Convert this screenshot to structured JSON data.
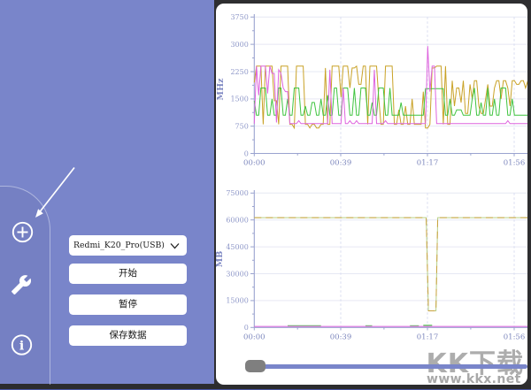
{
  "window": {
    "bg": "#2e2e30",
    "accent_line_color": "#47529f"
  },
  "sidebar": {
    "bg": "#7985ca",
    "icons": [
      {
        "name": "add"
      },
      {
        "name": "wrench"
      },
      {
        "name": "info"
      }
    ],
    "device_select": {
      "value": "Redmi_K20_Pro(USB)"
    },
    "buttons": [
      {
        "label": "开始"
      },
      {
        "label": "暂停"
      },
      {
        "label": "保存数据"
      }
    ]
  },
  "scrollbar": {
    "thumb_position": 0
  },
  "watermark": {
    "title": "KK下载",
    "url": "www.kkx.net"
  },
  "chart_style": {
    "axis_color": "#9aa3cf",
    "tick_label_color": "#9099c9",
    "x_label_color": "#7d87bd",
    "axis_title_color": "#7d87c2",
    "grid_h_color": "#e6e8f4",
    "grid_v_color": "#d9ddf0"
  },
  "chart_data": [
    {
      "type": "line",
      "ylabel": "MHz",
      "ylim": [
        0,
        3750
      ],
      "yticks": [
        0,
        750,
        1500,
        2250,
        3000,
        3750
      ],
      "xticks": [
        "00:00",
        "00:39",
        "01:17",
        "01:56"
      ],
      "grid": true,
      "legend": "none",
      "series": [
        {
          "name": "cpu-freq-gold",
          "color": "#c9a227",
          "points": [
            [
              0,
              1950
            ],
            [
              1,
              2400
            ],
            [
              3,
              2400
            ],
            [
              4,
              800
            ],
            [
              5,
              2400
            ],
            [
              8,
              2400
            ],
            [
              9,
              1450
            ],
            [
              11,
              800
            ],
            [
              12,
              2400
            ],
            [
              15,
              2400
            ],
            [
              16,
              800
            ],
            [
              18,
              700
            ],
            [
              19,
              2400
            ],
            [
              22,
              2400
            ],
            [
              23,
              800
            ],
            [
              25,
              700
            ],
            [
              26,
              800
            ],
            [
              28,
              700
            ],
            [
              30,
              800
            ],
            [
              32,
              2350
            ],
            [
              33,
              800
            ],
            [
              35,
              2400
            ],
            [
              38,
              2400
            ],
            [
              39,
              1550
            ],
            [
              40,
              2400
            ],
            [
              42,
              2400
            ],
            [
              43,
              1800
            ],
            [
              44,
              2350
            ],
            [
              46,
              2400
            ],
            [
              47,
              1900
            ],
            [
              49,
              2400
            ],
            [
              51,
              800
            ],
            [
              52,
              2400
            ],
            [
              55,
              2400
            ],
            [
              56,
              1500
            ],
            [
              57,
              800
            ],
            [
              59,
              2400
            ],
            [
              62,
              2400
            ],
            [
              63,
              800
            ],
            [
              65,
              1200
            ],
            [
              66,
              800
            ],
            [
              68,
              1300
            ],
            [
              69,
              800
            ],
            [
              71,
              1500
            ],
            [
              72,
              800
            ],
            [
              74,
              800
            ],
            [
              76,
              1700
            ],
            [
              77,
              700
            ],
            [
              79,
              800
            ],
            [
              80,
              2350
            ],
            [
              82,
              2400
            ],
            [
              84,
              2400
            ],
            [
              85,
              800
            ],
            [
              86,
              2400
            ],
            [
              87,
              800
            ],
            [
              89,
              2000
            ],
            [
              90,
              1300
            ],
            [
              91,
              1800
            ],
            [
              93,
              1400
            ],
            [
              94,
              2000
            ],
            [
              95,
              1100
            ],
            [
              97,
              1900
            ],
            [
              98,
              1500
            ],
            [
              99,
              2000
            ],
            [
              101,
              1300
            ],
            [
              102,
              1100
            ],
            [
              104,
              1500
            ],
            [
              105,
              1900
            ],
            [
              106,
              1300
            ],
            [
              108,
              1800
            ],
            [
              109,
              2000
            ],
            [
              111,
              1500
            ],
            [
              112,
              2000
            ],
            [
              114,
              1800
            ],
            [
              115,
              1300
            ],
            [
              116,
              2000
            ],
            [
              118,
              1900
            ],
            [
              120,
              2000
            ],
            [
              122,
              1800
            ],
            [
              123,
              2000
            ]
          ]
        },
        {
          "name": "cpu-freq-green",
          "color": "#3fc43f",
          "points": [
            [
              0,
              1450
            ],
            [
              1,
              1050
            ],
            [
              3,
              1800
            ],
            [
              5,
              1800
            ],
            [
              6,
              1050
            ],
            [
              8,
              1500
            ],
            [
              9,
              1050
            ],
            [
              11,
              1800
            ],
            [
              13,
              1050
            ],
            [
              15,
              1500
            ],
            [
              16,
              1050
            ],
            [
              18,
              1800
            ],
            [
              20,
              1800
            ],
            [
              21,
              1050
            ],
            [
              23,
              1300
            ],
            [
              24,
              1050
            ],
            [
              26,
              1400
            ],
            [
              28,
              1050
            ],
            [
              30,
              1500
            ],
            [
              31,
              1050
            ],
            [
              33,
              1600
            ],
            [
              34,
              1050
            ],
            [
              36,
              1800
            ],
            [
              38,
              1050
            ],
            [
              40,
              1800
            ],
            [
              42,
              1800
            ],
            [
              43,
              1050
            ],
            [
              45,
              1800
            ],
            [
              46,
              1050
            ],
            [
              48,
              1800
            ],
            [
              50,
              1800
            ],
            [
              51,
              1050
            ],
            [
              53,
              1400
            ],
            [
              54,
              1050
            ],
            [
              56,
              1800
            ],
            [
              58,
              1800
            ],
            [
              59,
              1050
            ],
            [
              61,
              1800
            ],
            [
              62,
              1050
            ],
            [
              64,
              1050
            ],
            [
              66,
              1400
            ],
            [
              67,
              1050
            ],
            [
              69,
              1050
            ],
            [
              71,
              1050
            ],
            [
              73,
              1050
            ],
            [
              75,
              1050
            ],
            [
              77,
              1780
            ],
            [
              80,
              1780
            ],
            [
              83,
              1780
            ],
            [
              85,
              1780
            ],
            [
              86,
              1050
            ],
            [
              88,
              1500
            ],
            [
              89,
              1050
            ],
            [
              91,
              1200
            ],
            [
              93,
              1200
            ],
            [
              94,
              1050
            ],
            [
              96,
              1050
            ],
            [
              98,
              1500
            ],
            [
              99,
              1800
            ],
            [
              100,
              1050
            ],
            [
              102,
              1400
            ],
            [
              103,
              1050
            ],
            [
              105,
              1800
            ],
            [
              106,
              1050
            ],
            [
              108,
              1500
            ],
            [
              109,
              1050
            ],
            [
              111,
              1800
            ],
            [
              113,
              1800
            ],
            [
              114,
              1050
            ],
            [
              116,
              1500
            ],
            [
              117,
              1050
            ],
            [
              119,
              1050
            ],
            [
              121,
              1050
            ],
            [
              123,
              1050
            ]
          ]
        },
        {
          "name": "cpu-freq-magenta",
          "color": "#de64de",
          "points": [
            [
              0,
              820
            ],
            [
              1,
              2400
            ],
            [
              2,
              1600
            ],
            [
              3,
              2400
            ],
            [
              5,
              2400
            ],
            [
              6,
              1650
            ],
            [
              7,
              2400
            ],
            [
              8,
              2200
            ],
            [
              10,
              850
            ],
            [
              11,
              2300
            ],
            [
              12,
              2200
            ],
            [
              13,
              1800
            ],
            [
              14,
              1700
            ],
            [
              16,
              820
            ],
            [
              18,
              820
            ],
            [
              20,
              900
            ],
            [
              21,
              820
            ],
            [
              24,
              820
            ],
            [
              27,
              820
            ],
            [
              30,
              820
            ],
            [
              33,
              820
            ],
            [
              34,
              2300
            ],
            [
              35,
              820
            ],
            [
              38,
              820
            ],
            [
              40,
              1800
            ],
            [
              41,
              820
            ],
            [
              43,
              900
            ],
            [
              44,
              820
            ],
            [
              46,
              900
            ],
            [
              47,
              820
            ],
            [
              50,
              820
            ],
            [
              53,
              820
            ],
            [
              54,
              2300
            ],
            [
              55,
              820
            ],
            [
              57,
              820
            ],
            [
              59,
              900
            ],
            [
              60,
              820
            ],
            [
              63,
              820
            ],
            [
              66,
              820
            ],
            [
              69,
              820
            ],
            [
              72,
              820
            ],
            [
              75,
              820
            ],
            [
              77,
              820
            ],
            [
              78,
              2950
            ],
            [
              79,
              1700
            ],
            [
              80,
              2400
            ],
            [
              81,
              2400
            ],
            [
              82,
              820
            ],
            [
              85,
              820
            ],
            [
              88,
              820
            ],
            [
              91,
              820
            ],
            [
              94,
              820
            ],
            [
              97,
              820
            ],
            [
              100,
              820
            ],
            [
              103,
              820
            ],
            [
              106,
              820
            ],
            [
              109,
              820
            ],
            [
              112,
              820
            ],
            [
              114,
              900
            ],
            [
              115,
              820
            ],
            [
              118,
              820
            ],
            [
              121,
              820
            ],
            [
              123,
              820
            ]
          ]
        }
      ]
    },
    {
      "type": "line",
      "ylabel": "MB",
      "ylim": [
        0,
        75000
      ],
      "yticks": [
        0,
        15000,
        30000,
        45000,
        60000,
        75000
      ],
      "xticks": [
        "00:00",
        "00:39",
        "01:17",
        "01:56"
      ],
      "grid": true,
      "legend": "none",
      "series": [
        {
          "name": "mem-green",
          "color": "#b7cf86",
          "points": [
            [
              0,
              61300
            ],
            [
              77.3,
              61300
            ],
            [
              78.3,
              9300
            ],
            [
              81.7,
              9300
            ],
            [
              82.5,
              61300
            ],
            [
              123,
              61300
            ]
          ]
        },
        {
          "name": "mem-gold-dashed",
          "color": "#c9a23d",
          "dash": "8 5",
          "points": [
            [
              0,
              61300
            ],
            [
              77.3,
              61300
            ],
            [
              78.3,
              9300
            ],
            [
              81.7,
              9300
            ],
            [
              82.5,
              61300
            ],
            [
              123,
              61300
            ]
          ]
        },
        {
          "name": "mem-low-green-a",
          "color": "#55bb55",
          "points": [
            [
              15,
              1000
            ],
            [
              30,
              1000
            ]
          ]
        },
        {
          "name": "mem-low-green-b",
          "color": "#55bb55",
          "points": [
            [
              50,
              1000
            ],
            [
              53,
              1000
            ]
          ]
        },
        {
          "name": "mem-low-green-c",
          "color": "#55bb55",
          "points": [
            [
              70,
              1000
            ],
            [
              74,
              1000
            ]
          ]
        },
        {
          "name": "mem-low-green-d",
          "color": "#2eb82e",
          "points": [
            [
              76,
              1200
            ],
            [
              80,
              1200
            ]
          ]
        },
        {
          "name": "mem-magenta",
          "color": "#de64de",
          "points": [
            [
              0,
              600
            ],
            [
              123,
              600
            ]
          ]
        }
      ]
    }
  ]
}
